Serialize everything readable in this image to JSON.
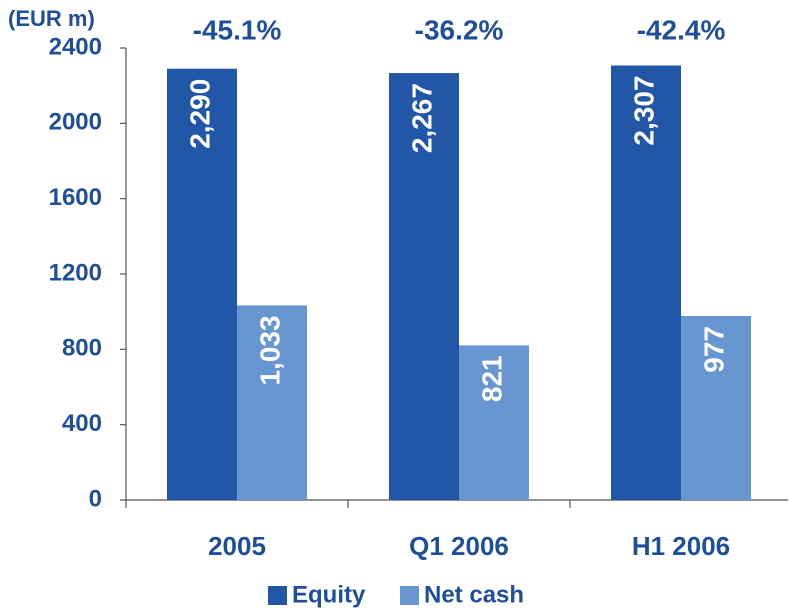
{
  "chart_data": {
    "type": "bar",
    "unit_label": "(EUR m)",
    "categories": [
      "2005",
      "Q1 2006",
      "H1 2006"
    ],
    "annotations": [
      "-45.1%",
      "-36.2%",
      "-42.4%"
    ],
    "series": [
      {
        "name": "Equity",
        "color": "#2256a6",
        "values": [
          2290,
          2267,
          2307
        ],
        "value_labels": [
          "2,290",
          "2,267",
          "2,307"
        ]
      },
      {
        "name": "Net cash",
        "color": "#6796d0",
        "values": [
          1033,
          821,
          977
        ],
        "value_labels": [
          "1,033",
          "821",
          "977"
        ]
      }
    ],
    "ylim": [
      0,
      2400
    ],
    "yticks": [
      0,
      400,
      800,
      1200,
      1600,
      2000,
      2400
    ],
    "legend": "bottom"
  }
}
